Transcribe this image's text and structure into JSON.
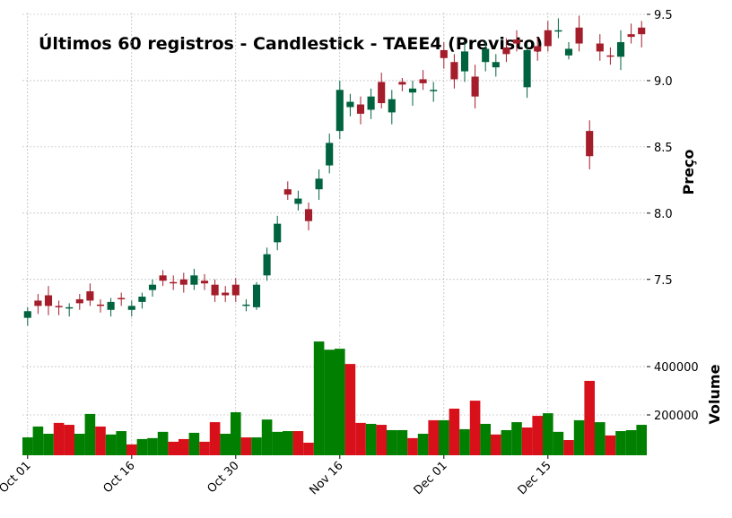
{
  "chart_data": {
    "type": "candlestick",
    "title": "Últimos 60 registros - Candlestick - TAEE4 (Previsto)",
    "categories": [
      "Oct 01",
      null,
      null,
      null,
      null,
      null,
      null,
      null,
      null,
      null,
      "Oct 16",
      null,
      null,
      null,
      null,
      null,
      null,
      null,
      null,
      null,
      "Oct 30",
      null,
      null,
      null,
      null,
      null,
      null,
      null,
      null,
      null,
      "Nov 16",
      null,
      null,
      null,
      null,
      null,
      null,
      null,
      null,
      null,
      "Dec 01",
      null,
      null,
      null,
      null,
      null,
      null,
      null,
      null,
      null,
      "Dec 15",
      null,
      null,
      null,
      null,
      null,
      null,
      null,
      null,
      null
    ],
    "open": [
      7.21,
      7.34,
      7.38,
      7.3,
      7.28,
      7.35,
      7.41,
      7.31,
      7.27,
      7.36,
      7.27,
      7.33,
      7.42,
      7.53,
      7.48,
      7.5,
      7.46,
      7.49,
      7.46,
      7.4,
      7.46,
      7.3,
      7.29,
      7.53,
      7.78,
      8.18,
      8.07,
      8.03,
      8.18,
      8.36,
      8.62,
      8.8,
      8.82,
      8.78,
      8.99,
      8.76,
      8.99,
      8.91,
      9.01,
      8.92,
      9.23,
      9.14,
      9.07,
      9.03,
      9.14,
      9.1,
      9.25,
      9.31,
      8.95,
      9.26,
      9.38,
      9.37,
      9.19,
      9.4,
      8.62,
      9.28,
      9.19,
      9.18,
      9.35,
      9.4
    ],
    "high": [
      7.29,
      7.39,
      7.45,
      7.34,
      7.32,
      7.39,
      7.47,
      7.35,
      7.36,
      7.4,
      7.34,
      7.4,
      7.5,
      7.57,
      7.53,
      7.55,
      7.58,
      7.54,
      7.5,
      7.45,
      7.51,
      7.35,
      7.48,
      7.74,
      7.98,
      8.24,
      8.17,
      8.08,
      8.33,
      8.6,
      9.0,
      8.9,
      8.88,
      8.94,
      9.06,
      8.93,
      9.02,
      9.0,
      9.08,
      8.99,
      9.29,
      9.2,
      9.29,
      9.12,
      9.3,
      9.2,
      9.32,
      9.38,
      9.28,
      9.33,
      9.45,
      9.47,
      9.29,
      9.49,
      8.7,
      9.35,
      9.25,
      9.38,
      9.43,
      9.45
    ],
    "low": [
      7.15,
      7.24,
      7.23,
      7.23,
      7.22,
      7.27,
      7.3,
      7.25,
      7.22,
      7.3,
      7.22,
      7.28,
      7.37,
      7.45,
      7.42,
      7.4,
      7.42,
      7.42,
      7.33,
      7.33,
      7.33,
      7.26,
      7.27,
      7.49,
      7.72,
      8.1,
      8.02,
      7.87,
      8.1,
      8.3,
      8.56,
      8.73,
      8.67,
      8.71,
      8.79,
      8.67,
      8.92,
      8.81,
      8.93,
      8.84,
      9.09,
      8.94,
      8.99,
      8.79,
      9.07,
      9.03,
      9.14,
      9.22,
      8.87,
      9.15,
      9.22,
      9.32,
      9.16,
      9.22,
      8.33,
      9.15,
      9.12,
      9.08,
      9.28,
      9.25
    ],
    "close": [
      7.26,
      7.3,
      7.3,
      7.29,
      7.29,
      7.32,
      7.34,
      7.3,
      7.33,
      7.35,
      7.3,
      7.37,
      7.46,
      7.49,
      7.47,
      7.46,
      7.53,
      7.47,
      7.38,
      7.38,
      7.38,
      7.31,
      7.46,
      7.69,
      7.92,
      8.14,
      8.11,
      7.94,
      8.26,
      8.53,
      8.93,
      8.84,
      8.75,
      8.88,
      8.83,
      8.86,
      8.97,
      8.94,
      8.98,
      8.93,
      9.17,
      9.01,
      9.22,
      8.88,
      9.24,
      9.14,
      9.2,
      9.28,
      9.23,
      9.22,
      9.26,
      9.38,
      9.24,
      9.28,
      8.43,
      9.22,
      9.18,
      9.29,
      9.33,
      9.35
    ],
    "up_color": "#00633f",
    "down_color": "#a31d2a",
    "ylabel": "Preço",
    "ylim": [
      7.14,
      9.5
    ],
    "yticks": [
      7.5,
      {
        "value": 8,
        "label": "8.0"
      },
      8.5,
      {
        "value": 9,
        "label": "9.0"
      },
      9.5
    ],
    "grid": true,
    "volume": {
      "label": "Volume",
      "values": [
        107000,
        152000,
        122000,
        167000,
        159000,
        122000,
        204000,
        152000,
        119000,
        133000,
        78000,
        100000,
        104000,
        130000,
        89000,
        100000,
        126000,
        89000,
        170000,
        122000,
        211000,
        107000,
        107000,
        181000,
        130000,
        133000,
        133000,
        85000,
        504000,
        470000,
        474000,
        411000,
        167000,
        163000,
        159000,
        137000,
        137000,
        104000,
        122000,
        178000,
        178000,
        226000,
        141000,
        259000,
        163000,
        119000,
        137000,
        170000,
        148000,
        196000,
        207000,
        130000,
        96000,
        178000,
        341000,
        170000,
        115000,
        133000,
        137000,
        159000
      ],
      "colors": [
        "#007f00",
        "#007f00",
        "#007f00",
        "#d7101a",
        "#d7101a",
        "#007f00",
        "#007f00",
        "#d7101a",
        "#007f00",
        "#007f00",
        "#d7101a",
        "#007f00",
        "#007f00",
        "#007f00",
        "#d7101a",
        "#d7101a",
        "#007f00",
        "#d7101a",
        "#d7101a",
        "#007f00",
        "#007f00",
        "#d7101a",
        "#007f00",
        "#007f00",
        "#007f00",
        "#007f00",
        "#d7101a",
        "#d7101a",
        "#007f00",
        "#007f00",
        "#007f00",
        "#d7101a",
        "#d7101a",
        "#007f00",
        "#d7101a",
        "#007f00",
        "#007f00",
        "#d7101a",
        "#007f00",
        "#d7101a",
        "#007f00",
        "#d7101a",
        "#007f00",
        "#d7101a",
        "#007f00",
        "#d7101a",
        "#007f00",
        "#007f00",
        "#d7101a",
        "#d7101a",
        "#007f00",
        "#007f00",
        "#d7101a",
        "#007f00",
        "#d7101a",
        "#007f00",
        "#d7101a",
        "#007f00",
        "#007f00",
        "#007f00"
      ],
      "ylim": [
        33000,
        545000
      ],
      "yticks": [
        200000,
        400000
      ]
    }
  }
}
